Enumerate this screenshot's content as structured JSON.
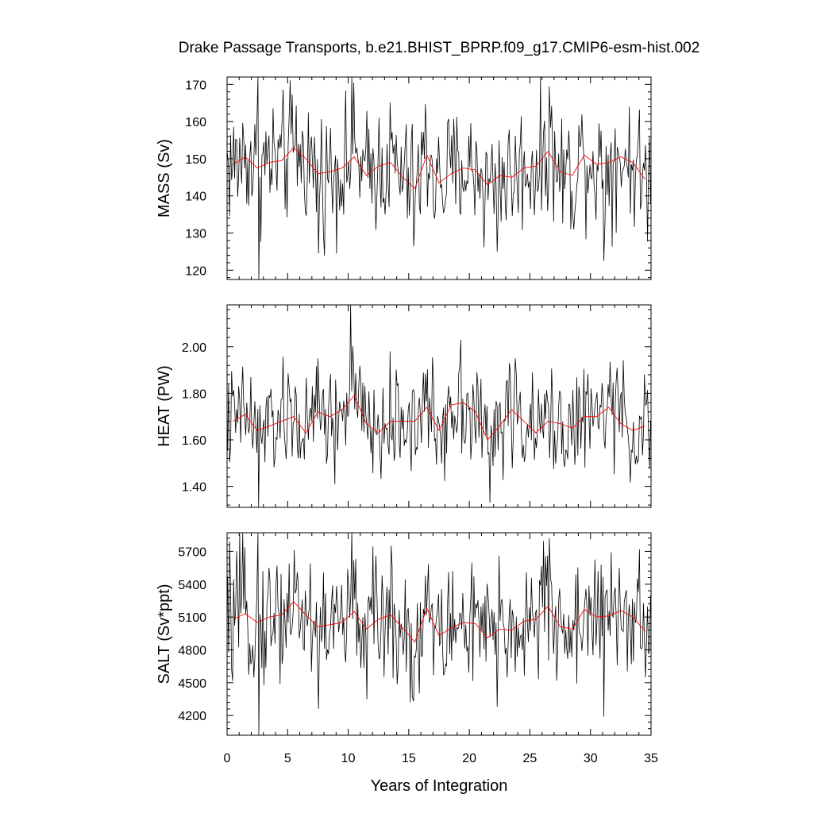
{
  "chart_data": {
    "type": "line",
    "title": "Drake Passage Transports, b.e21.BHIST_BPRP.f09_g17.CMIP6-esm-hist.002",
    "xlabel": "Years of Integration",
    "xlim": [
      0,
      35
    ],
    "xticks": [
      "0",
      "5",
      "10",
      "15",
      "20",
      "25",
      "30",
      "35"
    ],
    "colors": {
      "monthly": "#000000",
      "annual": "#ff0000"
    },
    "panels": [
      {
        "ylabel": "MASS (Sv)",
        "ylim": [
          117.5,
          172
        ],
        "yticks": [
          {
            "value": 120,
            "label": "120"
          },
          {
            "value": 130,
            "label": "130"
          },
          {
            "value": 140,
            "label": "140"
          },
          {
            "value": 150,
            "label": "150"
          },
          {
            "value": 160,
            "label": "160"
          },
          {
            "value": 170,
            "label": "170"
          }
        ],
        "annual_x": [
          0.5,
          1.5,
          2.5,
          3.5,
          4.5,
          5.5,
          6.5,
          7.5,
          8.5,
          9.5,
          10.5,
          11.5,
          12.5,
          13.5,
          14.5,
          15.5,
          16.5,
          17.5,
          18.5,
          19.5,
          20.5,
          21.5,
          22.5,
          23.5,
          24.5,
          25.5,
          26.5,
          27.5,
          28.5,
          29.5,
          30.5,
          31.5,
          32.5,
          33.5,
          34.5
        ],
        "annual": [
          148.5,
          150.5,
          147.5,
          149.0,
          149.5,
          153.0,
          150.0,
          146.0,
          146.5,
          147.5,
          150.5,
          145.5,
          148.0,
          149.0,
          145.0,
          142.0,
          151.0,
          143.5,
          146.0,
          147.5,
          147.0,
          143.0,
          145.5,
          145.0,
          147.5,
          148.0,
          152.0,
          146.5,
          145.5,
          151.0,
          148.5,
          149.0,
          150.5,
          149.0,
          144.5
        ],
        "monthly_summary": {
          "mean": 147.5,
          "amp": 8.5,
          "min": 117.5,
          "max": 172.0
        },
        "extremes": [
          {
            "x": 2.55,
            "y": 172.0
          },
          {
            "x": 2.62,
            "y": 117.5
          },
          {
            "x": 7.55,
            "y": 124.5
          },
          {
            "x": 10.3,
            "y": 172.0
          },
          {
            "x": 22.3,
            "y": 125.0
          },
          {
            "x": 31.1,
            "y": 122.5
          },
          {
            "x": 26.6,
            "y": 169.5
          },
          {
            "x": 15.4,
            "y": 126.5
          }
        ]
      },
      {
        "ylabel": "HEAT (PW)",
        "ylim": [
          1.31,
          2.18
        ],
        "yticks": [
          {
            "value": 1.4,
            "label": "1.40"
          },
          {
            "value": 1.6,
            "label": "1.60"
          },
          {
            "value": 1.8,
            "label": "1.80"
          },
          {
            "value": 2.0,
            "label": "2.00"
          }
        ],
        "annual_x": [
          0.5,
          1.5,
          2.5,
          3.5,
          4.5,
          5.5,
          6.5,
          7.5,
          8.5,
          9.5,
          10.5,
          11.5,
          12.5,
          13.5,
          14.5,
          15.5,
          16.5,
          17.5,
          18.5,
          19.5,
          20.5,
          21.5,
          22.5,
          23.5,
          24.5,
          25.5,
          26.5,
          27.5,
          28.5,
          29.5,
          30.5,
          31.5,
          32.5,
          33.5,
          34.5
        ],
        "annual": [
          1.68,
          1.71,
          1.64,
          1.66,
          1.68,
          1.7,
          1.63,
          1.72,
          1.7,
          1.73,
          1.79,
          1.67,
          1.63,
          1.68,
          1.68,
          1.68,
          1.74,
          1.64,
          1.75,
          1.76,
          1.72,
          1.6,
          1.66,
          1.73,
          1.68,
          1.63,
          1.68,
          1.67,
          1.65,
          1.7,
          1.7,
          1.74,
          1.67,
          1.64,
          1.66
        ],
        "monthly_summary": {
          "mean": 1.67,
          "amp": 0.11,
          "min": 1.31,
          "max": 2.18
        },
        "extremes": [
          {
            "x": 10.2,
            "y": 2.18
          },
          {
            "x": 2.6,
            "y": 1.31
          },
          {
            "x": 21.7,
            "y": 1.33
          },
          {
            "x": 19.3,
            "y": 2.03
          },
          {
            "x": 8.9,
            "y": 1.41
          },
          {
            "x": 23.3,
            "y": 1.93
          },
          {
            "x": 7.5,
            "y": 1.95
          },
          {
            "x": 32.2,
            "y": 1.91
          }
        ]
      },
      {
        "ylabel": "SALT (Sv*ppt)",
        "ylim": [
          4020,
          5870
        ],
        "yticks": [
          {
            "value": 4200,
            "label": "4200"
          },
          {
            "value": 4500,
            "label": "4500"
          },
          {
            "value": 4800,
            "label": "4800"
          },
          {
            "value": 5100,
            "label": "5100"
          },
          {
            "value": 5400,
            "label": "5400"
          },
          {
            "value": 5700,
            "label": "5700"
          }
        ],
        "annual_x": [
          0.5,
          1.5,
          2.5,
          3.5,
          4.5,
          5.5,
          6.5,
          7.5,
          8.5,
          9.5,
          10.5,
          11.5,
          12.5,
          13.5,
          14.5,
          15.5,
          16.5,
          17.5,
          18.5,
          19.5,
          20.5,
          21.5,
          22.5,
          23.5,
          24.5,
          25.5,
          26.5,
          27.5,
          28.5,
          29.5,
          30.5,
          31.5,
          32.5,
          33.5,
          34.5
        ],
        "annual": [
          5080,
          5130,
          5050,
          5100,
          5120,
          5240,
          5120,
          5010,
          5030,
          5050,
          5150,
          4990,
          5080,
          5120,
          5000,
          4870,
          5180,
          4930,
          5000,
          5050,
          5040,
          4910,
          4990,
          4980,
          5060,
          5080,
          5200,
          5010,
          4990,
          5170,
          5100,
          5110,
          5160,
          5100,
          4970
        ],
        "monthly_summary": {
          "mean": 5070,
          "amp": 290,
          "min": 4020,
          "max": 5870
        },
        "extremes": [
          {
            "x": 2.55,
            "y": 5870
          },
          {
            "x": 2.62,
            "y": 4020
          },
          {
            "x": 10.3,
            "y": 5870
          },
          {
            "x": 7.55,
            "y": 4260
          },
          {
            "x": 31.1,
            "y": 4190
          },
          {
            "x": 22.3,
            "y": 4280
          },
          {
            "x": 26.6,
            "y": 5820
          },
          {
            "x": 15.4,
            "y": 4330
          }
        ]
      }
    ]
  }
}
